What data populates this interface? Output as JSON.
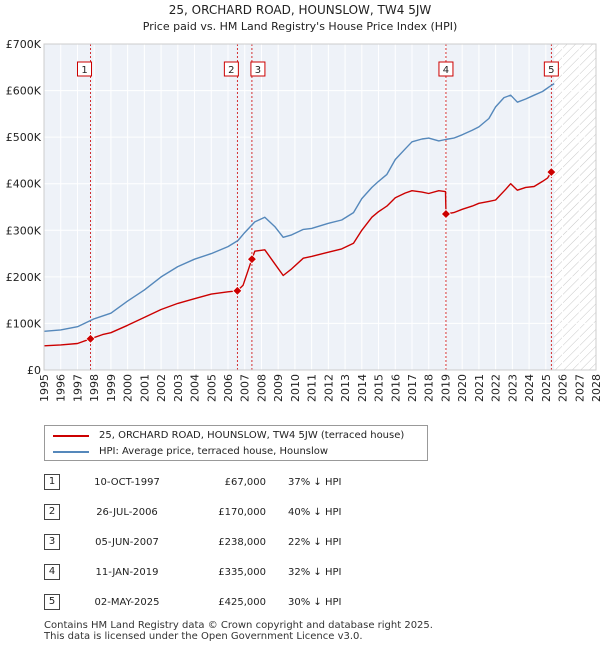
{
  "chart_data": {
    "type": "line",
    "title": "25, ORCHARD ROAD, HOUNSLOW, TW4 5JW",
    "subtitle": "Price paid vs. HM Land Registry's House Price Index (HPI)",
    "xlim": [
      1995,
      2028
    ],
    "ylim": [
      0,
      700000
    ],
    "x_ticks": [
      "1995",
      "1996",
      "1997",
      "1998",
      "1999",
      "2000",
      "2001",
      "2002",
      "2003",
      "2004",
      "2005",
      "2006",
      "2007",
      "2008",
      "2009",
      "2010",
      "2011",
      "2012",
      "2013",
      "2014",
      "2015",
      "2016",
      "2017",
      "2018",
      "2019",
      "2020",
      "2021",
      "2022",
      "2023",
      "2024",
      "2025",
      "2026",
      "2027",
      "2028"
    ],
    "y_ticks": [
      {
        "value": 0,
        "label": "£0"
      },
      {
        "value": 100000,
        "label": "£100K"
      },
      {
        "value": 200000,
        "label": "£200K"
      },
      {
        "value": 300000,
        "label": "£300K"
      },
      {
        "value": 400000,
        "label": "£400K"
      },
      {
        "value": 500000,
        "label": "£500K"
      },
      {
        "value": 600000,
        "label": "£600K"
      },
      {
        "value": 700000,
        "label": "£700K"
      }
    ],
    "hatch_from": 2025.5,
    "series": [
      {
        "name": "25, ORCHARD ROAD, HOUNSLOW, TW4 5JW (terraced house)",
        "color": "#cc0000",
        "points": [
          [
            1995,
            52000
          ],
          [
            1996,
            54000
          ],
          [
            1997,
            57000
          ],
          [
            1997.78,
            67000
          ],
          [
            1998.5,
            76000
          ],
          [
            1999,
            80000
          ],
          [
            2000,
            96000
          ],
          [
            2001,
            113000
          ],
          [
            2002,
            130000
          ],
          [
            2003,
            143000
          ],
          [
            2004,
            153000
          ],
          [
            2005,
            163000
          ],
          [
            2006,
            168000
          ],
          [
            2006.56,
            170000
          ],
          [
            2006.9,
            182000
          ],
          [
            2007.43,
            238000
          ],
          [
            2007.6,
            255000
          ],
          [
            2008.2,
            258000
          ],
          [
            2008.8,
            228000
          ],
          [
            2009.3,
            203000
          ],
          [
            2009.8,
            217000
          ],
          [
            2010.5,
            240000
          ],
          [
            2011,
            244000
          ],
          [
            2012,
            253000
          ],
          [
            2012.8,
            260000
          ],
          [
            2013.5,
            272000
          ],
          [
            2014,
            300000
          ],
          [
            2014.6,
            328000
          ],
          [
            2015,
            340000
          ],
          [
            2015.5,
            352000
          ],
          [
            2016,
            370000
          ],
          [
            2016.6,
            380000
          ],
          [
            2017,
            385000
          ],
          [
            2017.6,
            382000
          ],
          [
            2018,
            379000
          ],
          [
            2018.6,
            385000
          ],
          [
            2019,
            383000
          ],
          [
            2019.03,
            335000
          ],
          [
            2019.5,
            338000
          ],
          [
            2020,
            345000
          ],
          [
            2020.6,
            352000
          ],
          [
            2021,
            358000
          ],
          [
            2021.6,
            362000
          ],
          [
            2022,
            365000
          ],
          [
            2022.6,
            388000
          ],
          [
            2022.9,
            400000
          ],
          [
            2023.3,
            386000
          ],
          [
            2023.8,
            392000
          ],
          [
            2024.3,
            394000
          ],
          [
            2024.8,
            405000
          ],
          [
            2025.1,
            412000
          ],
          [
            2025.33,
            425000
          ]
        ]
      },
      {
        "name": "HPI: Average price, terraced house, Hounslow",
        "color": "#5588bb",
        "points": [
          [
            1995,
            83000
          ],
          [
            1996,
            86000
          ],
          [
            1997,
            93000
          ],
          [
            1998,
            110000
          ],
          [
            1999,
            122000
          ],
          [
            2000,
            148000
          ],
          [
            2001,
            172000
          ],
          [
            2002,
            200000
          ],
          [
            2003,
            222000
          ],
          [
            2004,
            238000
          ],
          [
            2005,
            250000
          ],
          [
            2006,
            265000
          ],
          [
            2006.6,
            278000
          ],
          [
            2007,
            295000
          ],
          [
            2007.6,
            318000
          ],
          [
            2008.2,
            328000
          ],
          [
            2008.8,
            308000
          ],
          [
            2009.3,
            285000
          ],
          [
            2009.8,
            290000
          ],
          [
            2010.5,
            302000
          ],
          [
            2011,
            304000
          ],
          [
            2012,
            315000
          ],
          [
            2012.8,
            322000
          ],
          [
            2013.5,
            338000
          ],
          [
            2014,
            368000
          ],
          [
            2014.6,
            392000
          ],
          [
            2015,
            405000
          ],
          [
            2015.5,
            420000
          ],
          [
            2016,
            452000
          ],
          [
            2016.6,
            475000
          ],
          [
            2017,
            490000
          ],
          [
            2017.6,
            496000
          ],
          [
            2018,
            498000
          ],
          [
            2018.6,
            492000
          ],
          [
            2019,
            495000
          ],
          [
            2019.5,
            498000
          ],
          [
            2020,
            505000
          ],
          [
            2020.6,
            515000
          ],
          [
            2021,
            522000
          ],
          [
            2021.6,
            540000
          ],
          [
            2022,
            565000
          ],
          [
            2022.5,
            585000
          ],
          [
            2022.9,
            590000
          ],
          [
            2023.3,
            575000
          ],
          [
            2023.8,
            582000
          ],
          [
            2024.3,
            590000
          ],
          [
            2024.8,
            598000
          ],
          [
            2025.2,
            608000
          ],
          [
            2025.5,
            615000
          ]
        ]
      }
    ],
    "sales": [
      {
        "id": "1",
        "x": 1997.78,
        "price": 67000
      },
      {
        "id": "2",
        "x": 2006.56,
        "price": 170000
      },
      {
        "id": "3",
        "x": 2007.43,
        "price": 238000
      },
      {
        "id": "4",
        "x": 2019.03,
        "price": 335000
      },
      {
        "id": "5",
        "x": 2025.33,
        "price": 425000
      }
    ]
  },
  "legend": {
    "property_label": "25, ORCHARD ROAD, HOUNSLOW, TW4 5JW (terraced house)",
    "hpi_label": "HPI: Average price, terraced house, Hounslow",
    "property_color": "#cc0000",
    "hpi_color": "#5588bb"
  },
  "table": [
    {
      "num": "1",
      "date": "10-OCT-1997",
      "price": "£67,000",
      "hpi": "37% ↓ HPI"
    },
    {
      "num": "2",
      "date": "26-JUL-2006",
      "price": "£170,000",
      "hpi": "40% ↓ HPI"
    },
    {
      "num": "3",
      "date": "05-JUN-2007",
      "price": "£238,000",
      "hpi": "22% ↓ HPI"
    },
    {
      "num": "4",
      "date": "11-JAN-2019",
      "price": "£335,000",
      "hpi": "32% ↓ HPI"
    },
    {
      "num": "5",
      "date": "02-MAY-2025",
      "price": "£425,000",
      "hpi": "30% ↓ HPI"
    }
  ],
  "footer": {
    "line1": "Contains HM Land Registry data © Crown copyright and database right 2025.",
    "line2": "This data is licensed under the Open Government Licence v3.0."
  }
}
